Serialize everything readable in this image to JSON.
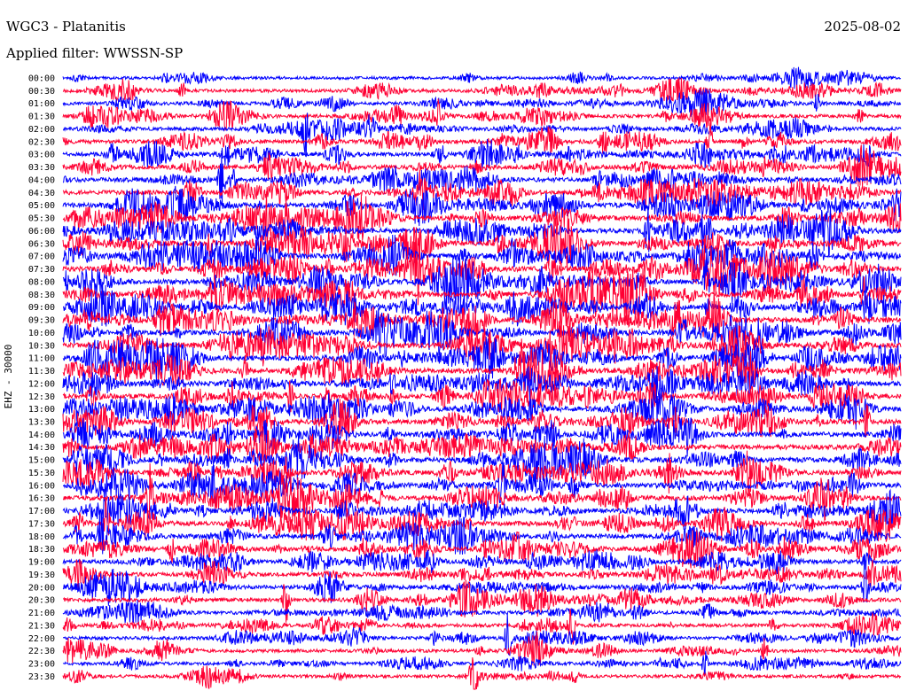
{
  "header": {
    "station_title": "WGC3 - Platanitis",
    "date": "2025-08-02",
    "filter_label": "Applied filter: WWSSN-SP"
  },
  "chart_data": {
    "type": "line",
    "ylabel": "EHZ - 30000",
    "trace_labels": [
      "00:00",
      "00:30",
      "01:00",
      "01:30",
      "02:00",
      "02:30",
      "03:00",
      "03:30",
      "04:00",
      "04:30",
      "05:00",
      "05:30",
      "06:00",
      "06:30",
      "07:00",
      "07:30",
      "08:00",
      "08:30",
      "09:00",
      "09:30",
      "10:00",
      "10:30",
      "11:00",
      "11:30",
      "12:00",
      "12:30",
      "13:00",
      "13:30",
      "14:00",
      "14:30",
      "15:00",
      "15:30",
      "16:00",
      "16:30",
      "17:00",
      "17:30",
      "18:00",
      "18:30",
      "19:00",
      "19:30",
      "20:00",
      "20:30",
      "21:00",
      "21:30",
      "22:00",
      "22:30",
      "23:00",
      "23:30"
    ],
    "colors": [
      "#0000ff",
      "#ff0033"
    ],
    "activity_levels": [
      0.35,
      0.45,
      0.5,
      0.55,
      0.55,
      0.6,
      0.7,
      0.75,
      0.8,
      0.85,
      0.9,
      0.9,
      0.95,
      0.95,
      1.0,
      1.0,
      1.0,
      1.0,
      1.0,
      1.0,
      1.0,
      1.0,
      1.0,
      1.0,
      0.95,
      0.95,
      0.95,
      0.95,
      0.9,
      0.9,
      0.9,
      0.9,
      0.9,
      0.9,
      0.85,
      0.85,
      0.85,
      0.8,
      0.75,
      0.7,
      0.65,
      0.6,
      0.55,
      0.5,
      0.45,
      0.45,
      0.4,
      0.4
    ]
  }
}
